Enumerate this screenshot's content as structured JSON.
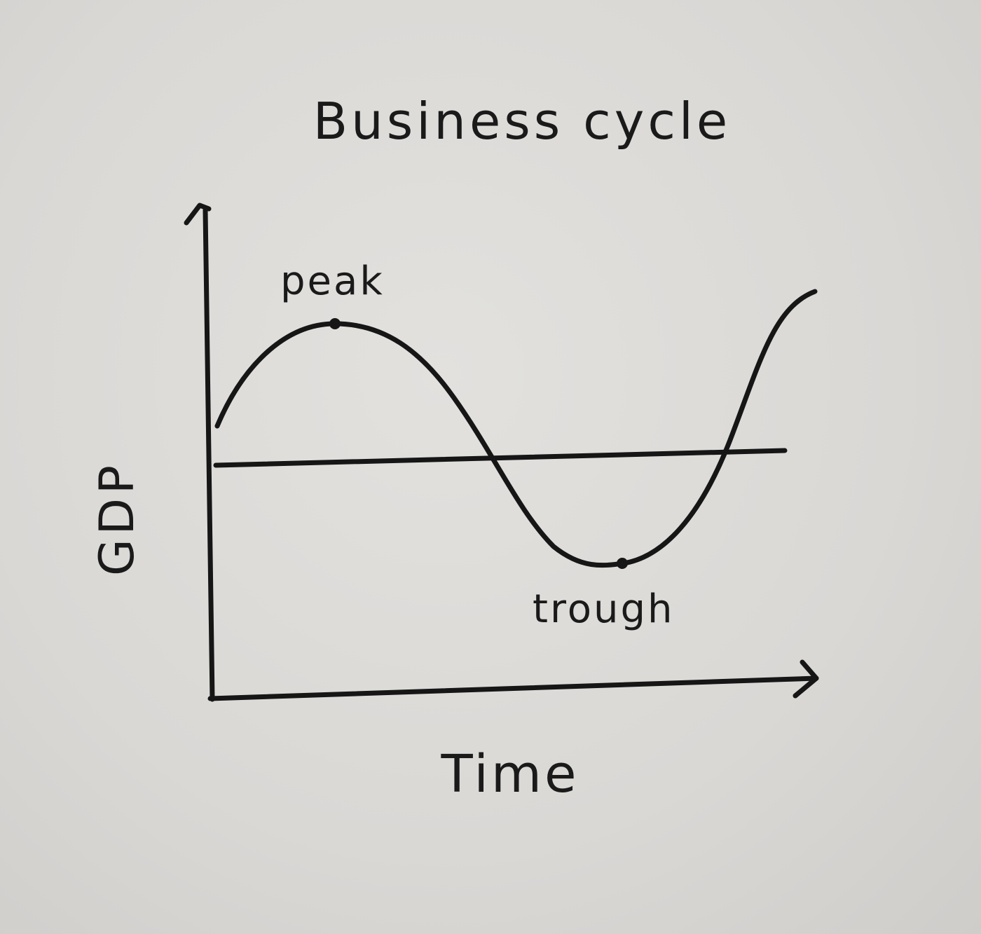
{
  "diagram": {
    "title": "Business cycle",
    "x_axis_label": "Time",
    "y_axis_label": "GDP",
    "annotations": {
      "peak": "peak",
      "trough": "trough"
    },
    "ink_color": "#161616",
    "paper_color": "#dedcd9"
  }
}
